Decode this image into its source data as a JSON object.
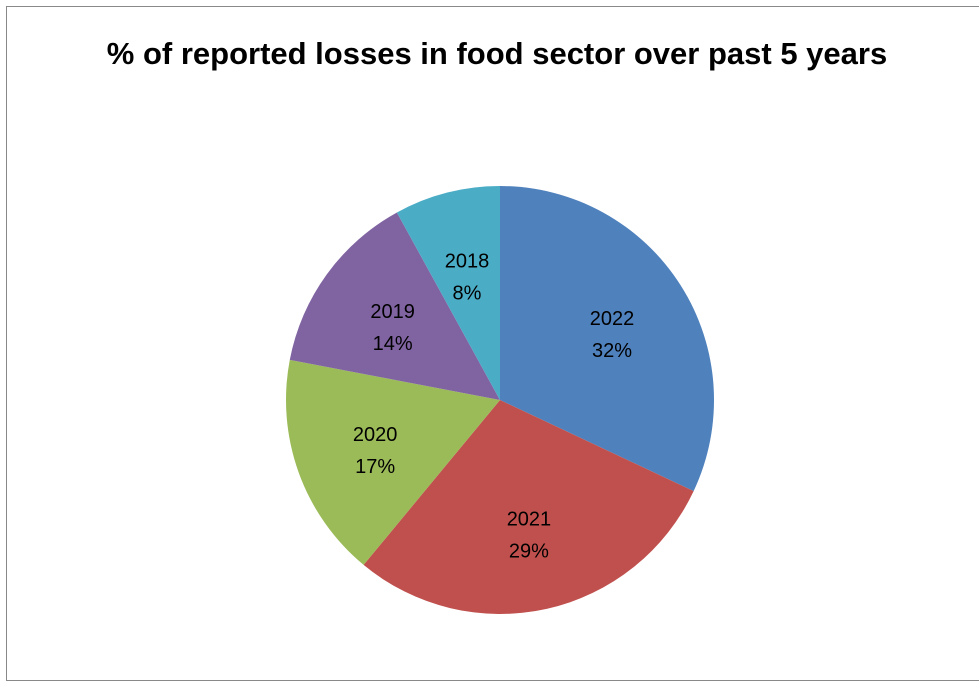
{
  "chart_data": {
    "type": "pie",
    "title": "% of reported losses in food sector over past 5 years",
    "legend": "none",
    "labels_on_slices": true,
    "slices": [
      {
        "category": "2022",
        "value": 32,
        "label": "32%",
        "color": "#4F81BD"
      },
      {
        "category": "2021",
        "value": 29,
        "label": "29%",
        "color": "#C0504D"
      },
      {
        "category": "2020",
        "value": 17,
        "label": "17%",
        "color": "#9BBB59"
      },
      {
        "category": "2019",
        "value": 14,
        "label": "14%",
        "color": "#8064A2"
      },
      {
        "category": "2018",
        "value": 8,
        "label": "8%",
        "color": "#4BACC6"
      }
    ]
  }
}
